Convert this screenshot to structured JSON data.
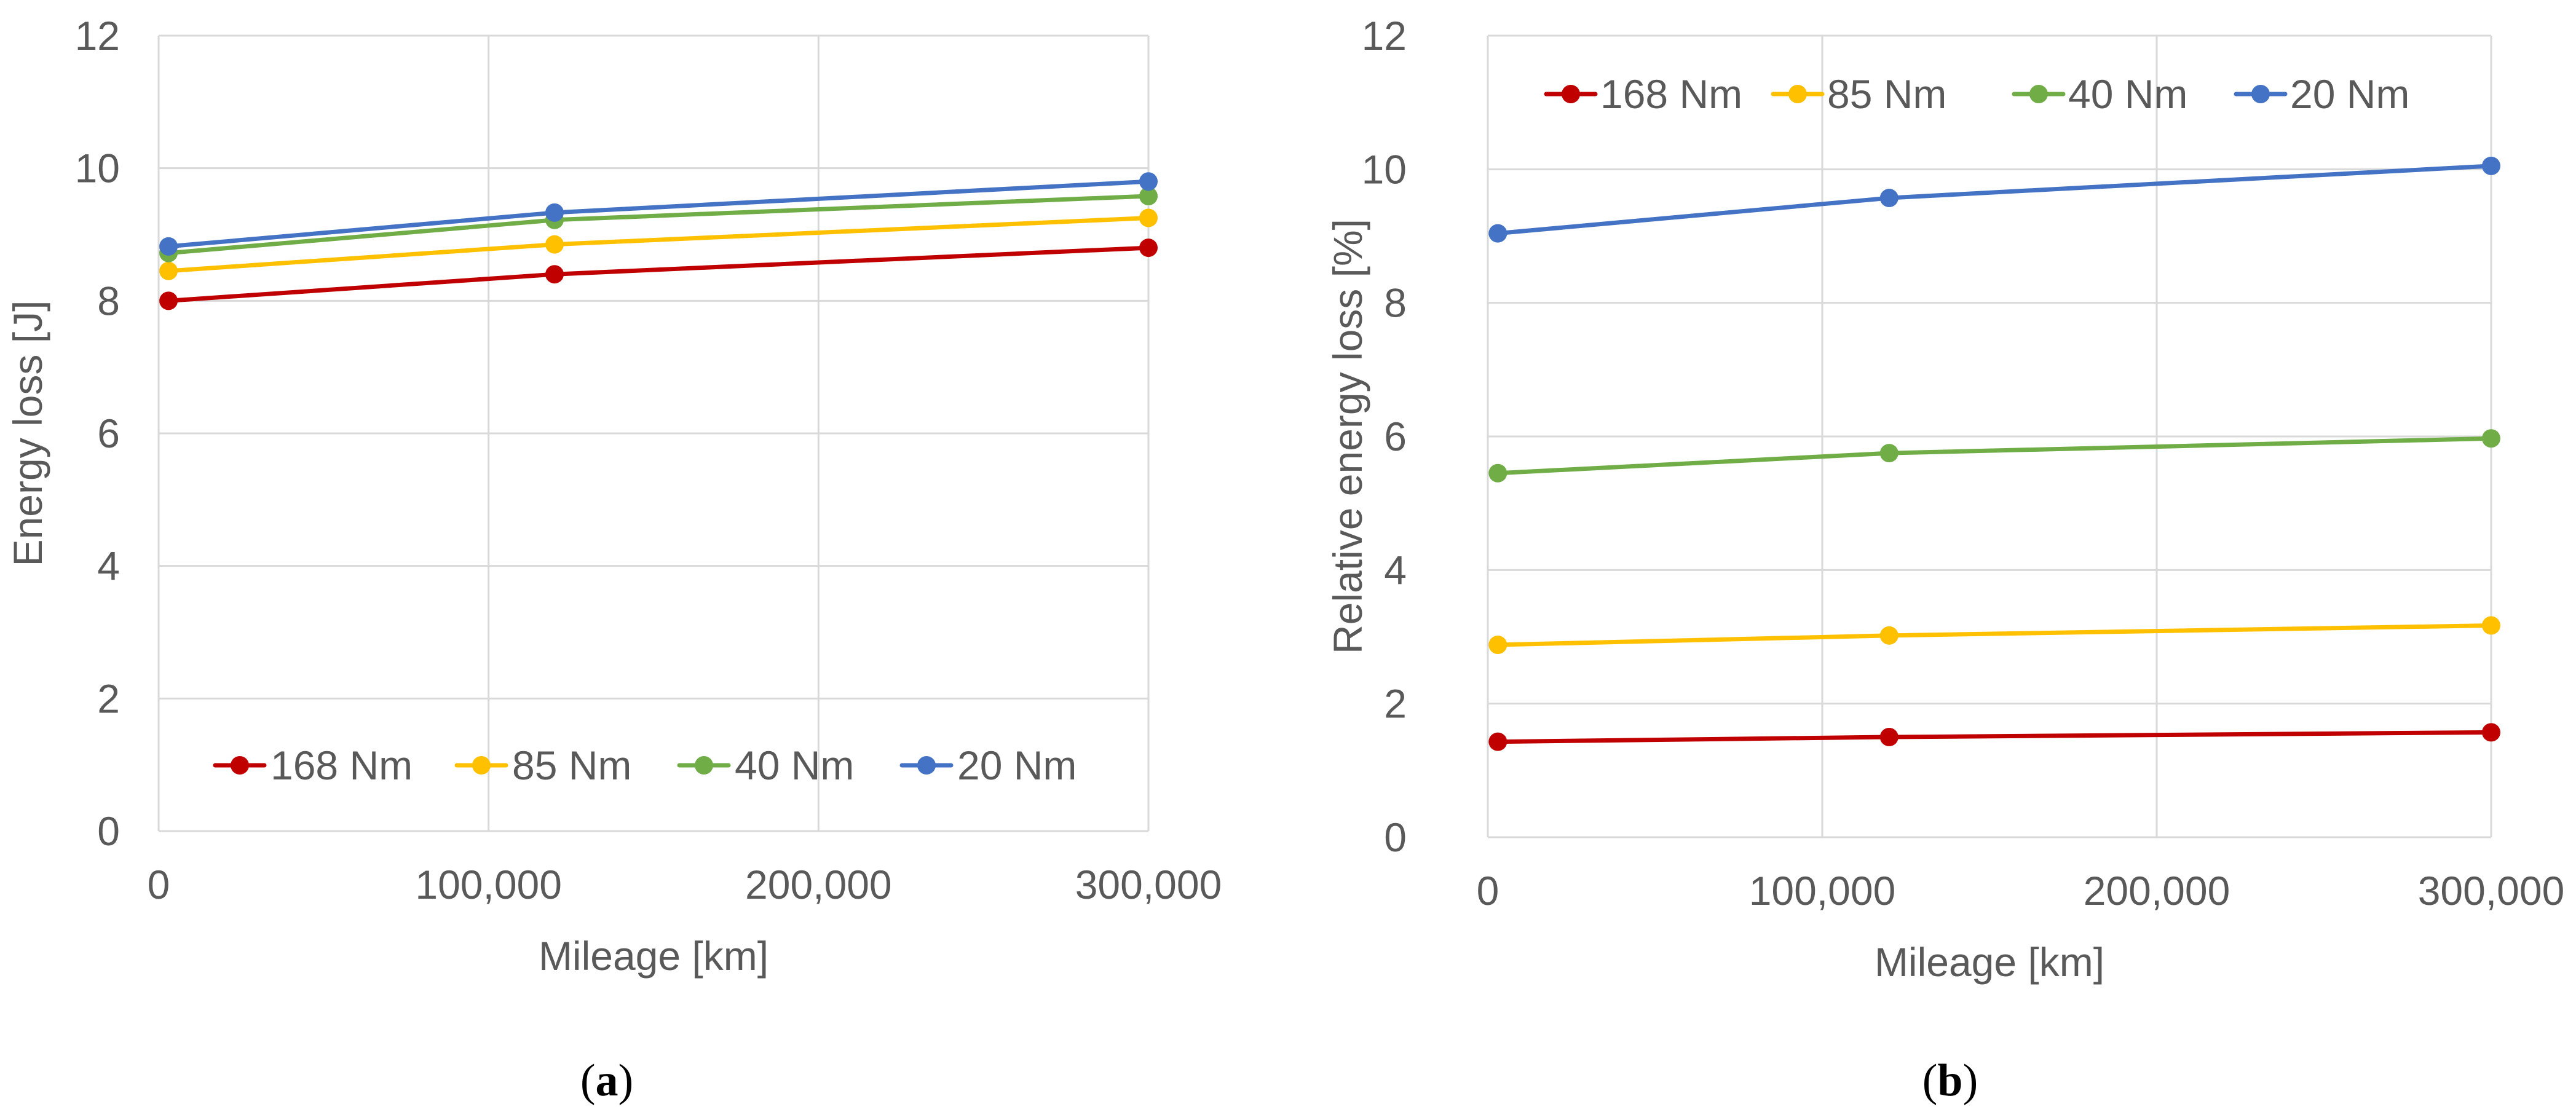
{
  "colors": {
    "168 Nm": "#c00000",
    "85 Nm": "#ffc000",
    "40 Nm": "#70ad47",
    "20 Nm": "#4472c4",
    "grid": "#d9d9d9",
    "text": "#595959"
  },
  "chart_data": [
    {
      "type": "line",
      "panel_label": "a",
      "title": "",
      "xlabel": "Mileage [km]",
      "ylabel": "Energy loss [J]",
      "xlim": [
        0,
        300000
      ],
      "ylim": [
        0,
        12
      ],
      "x_ticks": [
        0,
        100000,
        200000,
        300000
      ],
      "x_tick_labels": [
        "0",
        "100,000",
        "200,000",
        "300,000"
      ],
      "y_ticks": [
        0,
        2,
        4,
        6,
        8,
        10,
        12
      ],
      "y_tick_labels": [
        "0",
        "2",
        "4",
        "6",
        "8",
        "10",
        "12"
      ],
      "grid": true,
      "legend_position": "bottom",
      "x": [
        3000,
        120000,
        300000
      ],
      "series": [
        {
          "name": "168 Nm",
          "values": [
            8.0,
            8.4,
            8.8
          ]
        },
        {
          "name": "85 Nm",
          "values": [
            8.45,
            8.85,
            9.25
          ]
        },
        {
          "name": "40 Nm",
          "values": [
            8.72,
            9.22,
            9.58
          ]
        },
        {
          "name": "20 Nm",
          "values": [
            8.82,
            9.33,
            9.8
          ]
        }
      ]
    },
    {
      "type": "line",
      "panel_label": "b",
      "title": "",
      "xlabel": "Mileage [km]",
      "ylabel": "Relative energy loss [%]",
      "xlim": [
        0,
        300000
      ],
      "ylim": [
        0,
        12
      ],
      "x_ticks": [
        0,
        100000,
        200000,
        300000
      ],
      "x_tick_labels": [
        "0",
        "100,000",
        "200,000",
        "300,000"
      ],
      "y_ticks": [
        0,
        2,
        4,
        6,
        8,
        10,
        12
      ],
      "y_tick_labels": [
        "0",
        "2",
        "4",
        "6",
        "8",
        "10",
        "12"
      ],
      "grid": true,
      "legend_position": "top",
      "x": [
        3000,
        120000,
        300000
      ],
      "series": [
        {
          "name": "168 Nm",
          "values": [
            1.43,
            1.5,
            1.57
          ]
        },
        {
          "name": "85 Nm",
          "values": [
            2.88,
            3.02,
            3.17
          ]
        },
        {
          "name": "40 Nm",
          "values": [
            5.45,
            5.75,
            5.97
          ]
        },
        {
          "name": "20 Nm",
          "values": [
            9.04,
            9.57,
            10.05
          ]
        }
      ]
    }
  ]
}
